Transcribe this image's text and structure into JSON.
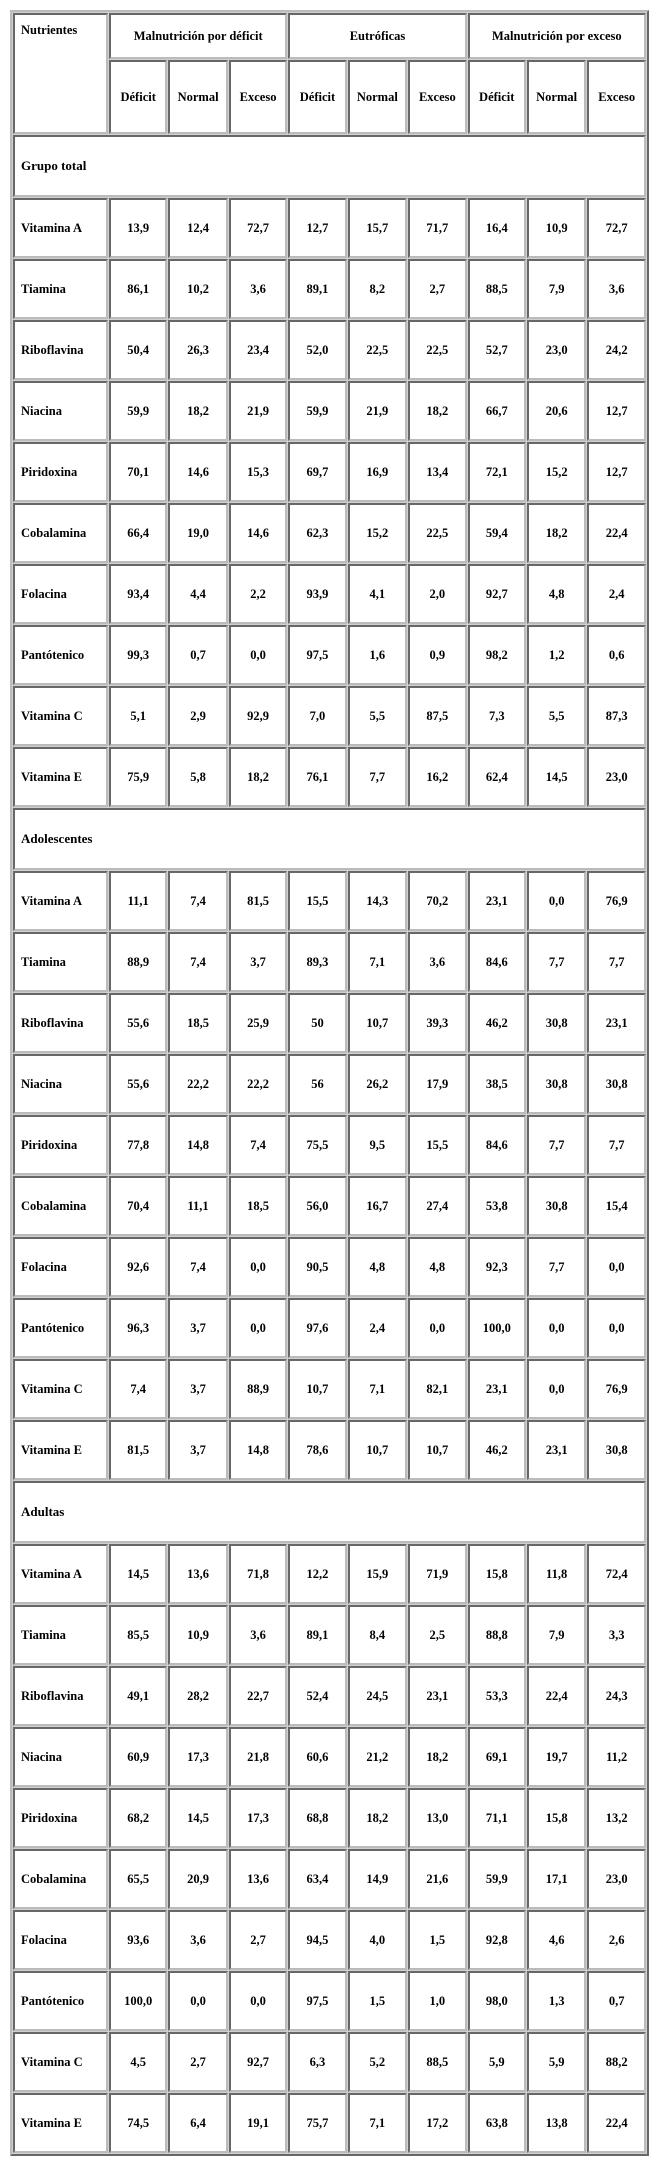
{
  "headers": {
    "nutrientes": "Nutrientes",
    "group1": "Malnutrición por déficit",
    "group2": "Eutróficas",
    "group3": "Malnutrición por exceso",
    "deficit": "Déficit",
    "normal": "Normal",
    "exceso": "Exceso"
  },
  "sections": [
    {
      "title": "Grupo total",
      "rows": [
        {
          "label": "Vitamina A",
          "c": [
            "13,9",
            "12,4",
            "72,7",
            "12,7",
            "15,7",
            "71,7",
            "16,4",
            "10,9",
            "72,7"
          ]
        },
        {
          "label": "Tiamina",
          "c": [
            "86,1",
            "10,2",
            "3,6",
            "89,1",
            "8,2",
            "2,7",
            "88,5",
            "7,9",
            "3,6"
          ]
        },
        {
          "label": "Riboflavina",
          "c": [
            "50,4",
            "26,3",
            "23,4",
            "52,0",
            "22,5",
            "22,5",
            "52,7",
            "23,0",
            "24,2"
          ]
        },
        {
          "label": "Niacina",
          "c": [
            "59,9",
            "18,2",
            "21,9",
            "59,9",
            "21,9",
            "18,2",
            "66,7",
            "20,6",
            "12,7"
          ]
        },
        {
          "label": "Piridoxina",
          "c": [
            "70,1",
            "14,6",
            "15,3",
            "69,7",
            "16,9",
            "13,4",
            "72,1",
            "15,2",
            "12,7"
          ]
        },
        {
          "label": "Cobalamina",
          "c": [
            "66,4",
            "19,0",
            "14,6",
            "62,3",
            "15,2",
            "22,5",
            "59,4",
            "18,2",
            "22,4"
          ]
        },
        {
          "label": "Folacina",
          "c": [
            "93,4",
            "4,4",
            "2,2",
            "93,9",
            "4,1",
            "2,0",
            "92,7",
            "4,8",
            "2,4"
          ]
        },
        {
          "label": "Pantótenico",
          "c": [
            "99,3",
            "0,7",
            "0,0",
            "97,5",
            "1,6",
            "0,9",
            "98,2",
            "1,2",
            "0,6"
          ]
        },
        {
          "label": "Vitamina C",
          "c": [
            "5,1",
            "2,9",
            "92,9",
            "7,0",
            "5,5",
            "87,5",
            "7,3",
            "5,5",
            "87,3"
          ]
        },
        {
          "label": "Vitamina E",
          "c": [
            "75,9",
            "5,8",
            "18,2",
            "76,1",
            "7,7",
            "16,2",
            "62,4",
            "14,5",
            "23,0"
          ]
        }
      ]
    },
    {
      "title": "Adolescentes",
      "rows": [
        {
          "label": "Vitamina A",
          "c": [
            "11,1",
            "7,4",
            "81,5",
            "15,5",
            "14,3",
            "70,2",
            "23,1",
            "0,0",
            "76,9"
          ]
        },
        {
          "label": "Tiamina",
          "c": [
            "88,9",
            "7,4",
            "3,7",
            "89,3",
            "7,1",
            "3,6",
            "84,6",
            "7,7",
            "7,7"
          ]
        },
        {
          "label": "Riboflavina",
          "c": [
            "55,6",
            "18,5",
            "25,9",
            "50",
            "10,7",
            "39,3",
            "46,2",
            "30,8",
            "23,1"
          ]
        },
        {
          "label": "Niacina",
          "c": [
            "55,6",
            "22,2",
            "22,2",
            "56",
            "26,2",
            "17,9",
            "38,5",
            "30,8",
            "30,8"
          ]
        },
        {
          "label": "Piridoxina",
          "c": [
            "77,8",
            "14,8",
            "7,4",
            "75,5",
            "9,5",
            "15,5",
            "84,6",
            "7,7",
            "7,7"
          ]
        },
        {
          "label": "Cobalamina",
          "c": [
            "70,4",
            "11,1",
            "18,5",
            "56,0",
            "16,7",
            "27,4",
            "53,8",
            "30,8",
            "15,4"
          ]
        },
        {
          "label": "Folacina",
          "c": [
            "92,6",
            "7,4",
            "0,0",
            "90,5",
            "4,8",
            "4,8",
            "92,3",
            "7,7",
            "0,0"
          ]
        },
        {
          "label": "Pantótenico",
          "c": [
            "96,3",
            "3,7",
            "0,0",
            "97,6",
            "2,4",
            "0,0",
            "100,0",
            "0,0",
            "0,0"
          ]
        },
        {
          "label": "Vitamina C",
          "c": [
            "7,4",
            "3,7",
            "88,9",
            "10,7",
            "7,1",
            "82,1",
            "23,1",
            "0,0",
            "76,9"
          ]
        },
        {
          "label": "Vitamina E",
          "c": [
            "81,5",
            "3,7",
            "14,8",
            "78,6",
            "10,7",
            "10,7",
            "46,2",
            "23,1",
            "30,8"
          ]
        }
      ]
    },
    {
      "title": "Adultas",
      "rows": [
        {
          "label": "Vitamina A",
          "c": [
            "14,5",
            "13,6",
            "71,8",
            "12,2",
            "15,9",
            "71,9",
            "15,8",
            "11,8",
            "72,4"
          ]
        },
        {
          "label": "Tiamina",
          "c": [
            "85,5",
            "10,9",
            "3,6",
            "89,1",
            "8,4",
            "2,5",
            "88,8",
            "7,9",
            "3,3"
          ]
        },
        {
          "label": "Riboflavina",
          "c": [
            "49,1",
            "28,2",
            "22,7",
            "52,4",
            "24,5",
            "23,1",
            "53,3",
            "22,4",
            "24,3"
          ]
        },
        {
          "label": "Niacina",
          "c": [
            "60,9",
            "17,3",
            "21,8",
            "60,6",
            "21,2",
            "18,2",
            "69,1",
            "19,7",
            "11,2"
          ]
        },
        {
          "label": "Piridoxina",
          "c": [
            "68,2",
            "14,5",
            "17,3",
            "68,8",
            "18,2",
            "13,0",
            "71,1",
            "15,8",
            "13,2"
          ]
        },
        {
          "label": "Cobalamina",
          "c": [
            "65,5",
            "20,9",
            "13,6",
            "63,4",
            "14,9",
            "21,6",
            "59,9",
            "17,1",
            "23,0"
          ]
        },
        {
          "label": "Folacina",
          "c": [
            "93,6",
            "3,6",
            "2,7",
            "94,5",
            "4,0",
            "1,5",
            "92,8",
            "4,6",
            "2,6"
          ]
        },
        {
          "label": "Pantótenico",
          "c": [
            "100,0",
            "0,0",
            "0,0",
            "97,5",
            "1,5",
            "1,0",
            "98,0",
            "1,3",
            "0,7"
          ]
        },
        {
          "label": "Vitamina C",
          "c": [
            "4,5",
            "2,7",
            "92,7",
            "6,3",
            "5,2",
            "88,5",
            "5,9",
            "5,9",
            "88,2"
          ]
        },
        {
          "label": "Vitamina E",
          "c": [
            "74,5",
            "6,4",
            "19,1",
            "75,7",
            "7,1",
            "17,2",
            "63,8",
            "13,8",
            "22,4"
          ]
        }
      ]
    }
  ]
}
